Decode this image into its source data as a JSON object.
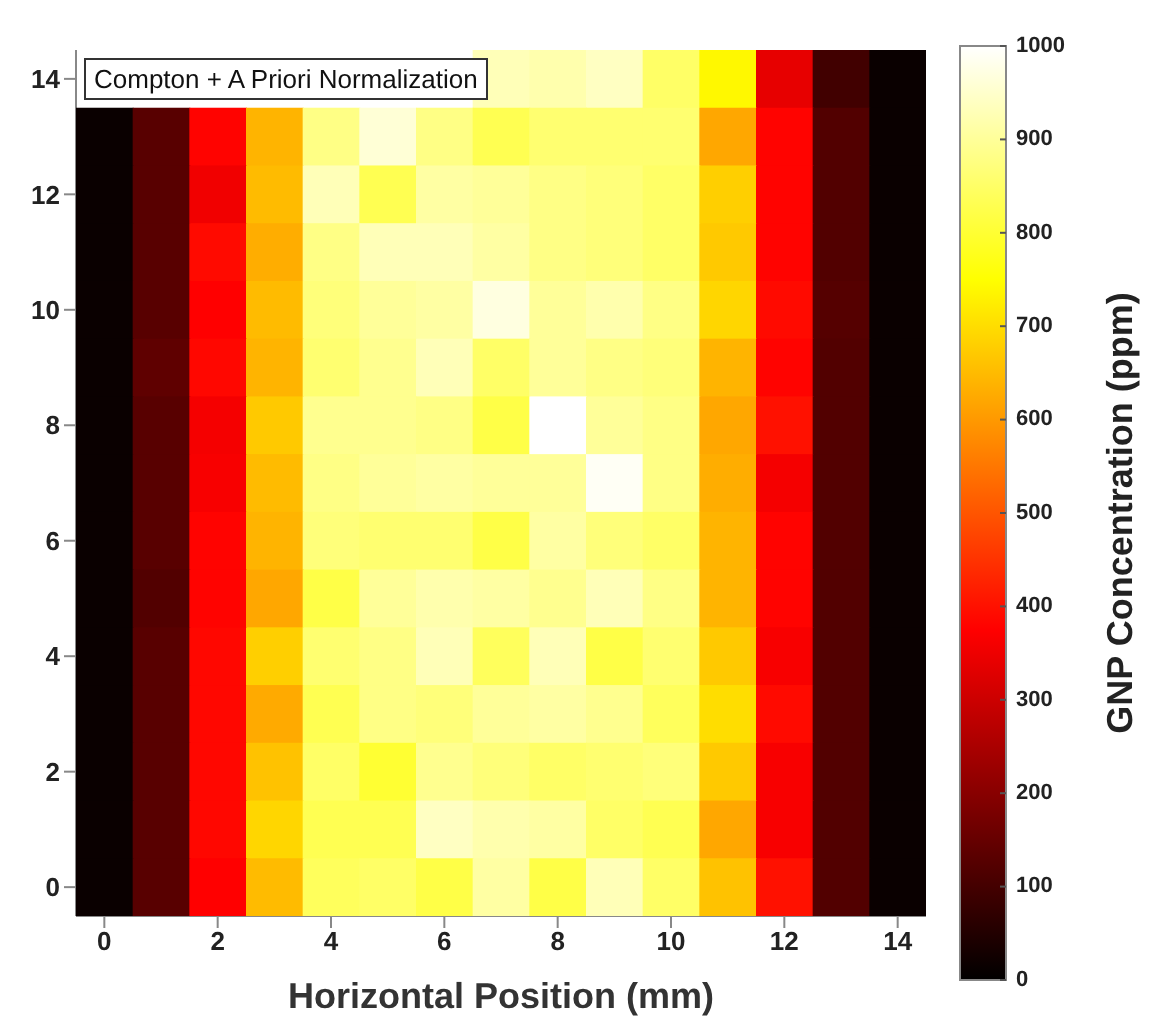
{
  "chart_data": {
    "type": "heatmap",
    "title": "Compton + A Priori Normalization",
    "xlabel": "Horizontal Position (mm)",
    "clabel": "GNP Concentration (ppm)",
    "categories": [
      "0",
      null,
      "2",
      null,
      "4",
      null,
      "6",
      null,
      "8",
      null,
      "10",
      null,
      "12",
      null,
      "14"
    ],
    "y_categories": [
      "14",
      null,
      "12",
      null,
      "10",
      null,
      "8",
      null,
      "6",
      null,
      "4",
      null,
      "2",
      null,
      "0"
    ],
    "cells": [
      [
        null,
        null,
        null,
        null,
        null,
        null,
        null,
        930,
        920,
        940,
        850,
        740,
        340,
        95,
        15
      ],
      [
        15,
        130,
        380,
        640,
        880,
        960,
        880,
        830,
        860,
        860,
        860,
        620,
        380,
        120,
        15
      ],
      [
        15,
        130,
        355,
        650,
        930,
        830,
        910,
        900,
        880,
        870,
        850,
        680,
        380,
        120,
        15
      ],
      [
        15,
        130,
        390,
        630,
        880,
        930,
        930,
        910,
        880,
        870,
        850,
        670,
        380,
        120,
        15
      ],
      [
        15,
        130,
        375,
        650,
        870,
        900,
        910,
        970,
        900,
        920,
        880,
        690,
        390,
        125,
        15
      ],
      [
        15,
        140,
        385,
        640,
        860,
        890,
        930,
        850,
        900,
        880,
        870,
        640,
        380,
        120,
        15
      ],
      [
        15,
        130,
        360,
        670,
        890,
        890,
        880,
        820,
        1000,
        900,
        880,
        620,
        400,
        120,
        15
      ],
      [
        15,
        130,
        365,
        650,
        880,
        900,
        910,
        900,
        900,
        990,
        880,
        630,
        360,
        120,
        15
      ],
      [
        15,
        130,
        380,
        640,
        870,
        860,
        860,
        820,
        910,
        870,
        850,
        640,
        380,
        120,
        15
      ],
      [
        15,
        120,
        380,
        620,
        820,
        900,
        920,
        910,
        890,
        930,
        880,
        640,
        380,
        120,
        15
      ],
      [
        15,
        130,
        385,
        680,
        860,
        880,
        930,
        840,
        930,
        820,
        860,
        670,
        365,
        120,
        15
      ],
      [
        15,
        130,
        385,
        625,
        830,
        880,
        870,
        900,
        910,
        890,
        840,
        700,
        390,
        120,
        15
      ],
      [
        15,
        130,
        385,
        660,
        850,
        800,
        890,
        870,
        850,
        860,
        870,
        670,
        365,
        120,
        15
      ],
      [
        15,
        130,
        385,
        690,
        830,
        830,
        940,
        920,
        910,
        850,
        830,
        620,
        365,
        120,
        15
      ],
      [
        15,
        130,
        375,
        650,
        840,
        850,
        820,
        910,
        820,
        930,
        850,
        660,
        400,
        120,
        15
      ]
    ],
    "clim": [
      0,
      1000
    ],
    "cticks": [
      0,
      100,
      200,
      300,
      400,
      500,
      600,
      700,
      800,
      900,
      1000
    ]
  }
}
